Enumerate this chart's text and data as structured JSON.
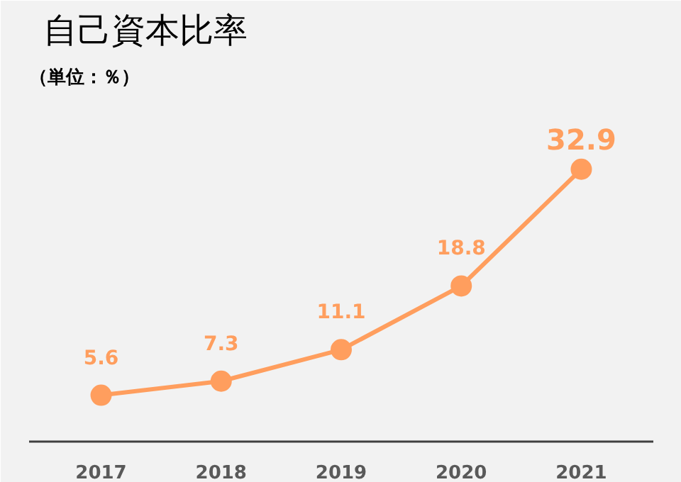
{
  "chart_data": {
    "type": "line",
    "title": "自己資本比率",
    "subtitle": "（単位：％）",
    "categories": [
      "2017",
      "2018",
      "2019",
      "2020",
      "2021"
    ],
    "series": [
      {
        "color": "#ff9e5e",
        "values": [
          5.6,
          7.3,
          11.1,
          18.8,
          32.9
        ]
      }
    ],
    "data_labels": true,
    "marker": "circle",
    "line_style": "solid",
    "grid": false
  }
}
